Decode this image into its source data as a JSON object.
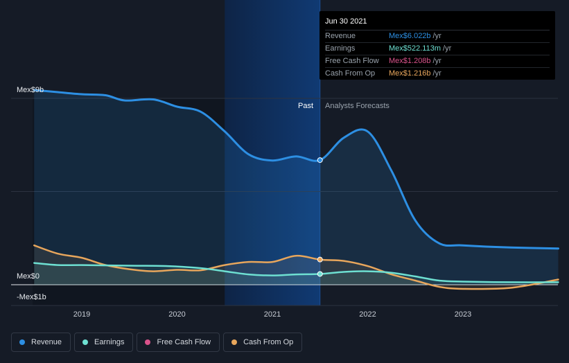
{
  "chart_data": {
    "type": "area",
    "currency": "Mex$",
    "y_axis": {
      "unit": "billions",
      "top_label": "Mex$9b",
      "zero_label": "Mex$0",
      "bottom_label": "-Mex$1b",
      "ylim": [
        -1,
        9
      ]
    },
    "x_axis": {
      "ticks": [
        "2019",
        "2020",
        "2021",
        "2022",
        "2023"
      ],
      "tick_values": [
        2019,
        2020,
        2021,
        2022,
        2023
      ],
      "xlim": [
        2018.5,
        2024
      ]
    },
    "segments": {
      "past_label": "Past",
      "forecast_label": "Analysts Forecasts",
      "divider_x": 2021.5,
      "highlight_start_x": 2020.5
    },
    "tooltip": {
      "date": "Jun 30 2021",
      "rows": [
        {
          "name": "Revenue",
          "value": "Mex$6.022b",
          "unit": "/yr",
          "color": "#2d8fe3"
        },
        {
          "name": "Earnings",
          "value": "Mex$522.113m",
          "unit": "/yr",
          "color": "#6ee0d2"
        },
        {
          "name": "Free Cash Flow",
          "value": "Mex$1.208b",
          "unit": "/yr",
          "color": "#d9528a"
        },
        {
          "name": "Cash From Op",
          "value": "Mex$1.216b",
          "unit": "/yr",
          "color": "#e8a65c"
        }
      ]
    },
    "series": [
      {
        "name": "Revenue",
        "color": "#2d8fe3",
        "points": [
          [
            2018.5,
            9.4
          ],
          [
            2018.75,
            9.3
          ],
          [
            2019.0,
            9.2
          ],
          [
            2019.25,
            9.15
          ],
          [
            2019.45,
            8.9
          ],
          [
            2019.75,
            8.95
          ],
          [
            2020.0,
            8.6
          ],
          [
            2020.25,
            8.35
          ],
          [
            2020.5,
            7.4
          ],
          [
            2020.75,
            6.3
          ],
          [
            2021.0,
            6.0
          ],
          [
            2021.25,
            6.2
          ],
          [
            2021.5,
            6.02
          ],
          [
            2021.75,
            7.1
          ],
          [
            2022.0,
            7.4
          ],
          [
            2022.25,
            5.5
          ],
          [
            2022.5,
            3.1
          ],
          [
            2022.75,
            2.0
          ],
          [
            2023.0,
            1.9
          ],
          [
            2023.5,
            1.8
          ],
          [
            2024.0,
            1.75
          ]
        ]
      },
      {
        "name": "Earnings",
        "color": "#6ee0d2",
        "points": [
          [
            2018.5,
            1.05
          ],
          [
            2018.75,
            0.95
          ],
          [
            2019.0,
            0.95
          ],
          [
            2019.5,
            0.92
          ],
          [
            2019.9,
            0.9
          ],
          [
            2020.25,
            0.8
          ],
          [
            2020.5,
            0.65
          ],
          [
            2020.75,
            0.5
          ],
          [
            2021.0,
            0.45
          ],
          [
            2021.25,
            0.5
          ],
          [
            2021.5,
            0.52
          ],
          [
            2021.75,
            0.62
          ],
          [
            2022.0,
            0.65
          ],
          [
            2022.25,
            0.58
          ],
          [
            2022.5,
            0.4
          ],
          [
            2022.75,
            0.2
          ],
          [
            2023.0,
            0.15
          ],
          [
            2023.5,
            0.12
          ],
          [
            2024.0,
            0.12
          ]
        ]
      },
      {
        "name": "Free Cash Flow",
        "color": "#d9528a",
        "points": []
      },
      {
        "name": "Cash From Op",
        "color": "#e8a65c",
        "points": [
          [
            2018.5,
            1.9
          ],
          [
            2018.75,
            1.5
          ],
          [
            2019.0,
            1.3
          ],
          [
            2019.25,
            0.95
          ],
          [
            2019.5,
            0.75
          ],
          [
            2019.75,
            0.65
          ],
          [
            2020.0,
            0.72
          ],
          [
            2020.25,
            0.7
          ],
          [
            2020.5,
            0.95
          ],
          [
            2020.75,
            1.1
          ],
          [
            2021.0,
            1.1
          ],
          [
            2021.25,
            1.4
          ],
          [
            2021.5,
            1.216
          ],
          [
            2021.75,
            1.15
          ],
          [
            2022.0,
            0.9
          ],
          [
            2022.25,
            0.5
          ],
          [
            2022.5,
            0.2
          ],
          [
            2022.75,
            -0.1
          ],
          [
            2023.0,
            -0.2
          ],
          [
            2023.5,
            -0.15
          ],
          [
            2024.0,
            0.25
          ]
        ]
      }
    ],
    "markers_x": 2021.5
  },
  "legend": [
    {
      "label": "Revenue",
      "color": "#2d8fe3"
    },
    {
      "label": "Earnings",
      "color": "#6ee0d2"
    },
    {
      "label": "Free Cash Flow",
      "color": "#d9528a"
    },
    {
      "label": "Cash From Op",
      "color": "#e8a65c"
    }
  ]
}
